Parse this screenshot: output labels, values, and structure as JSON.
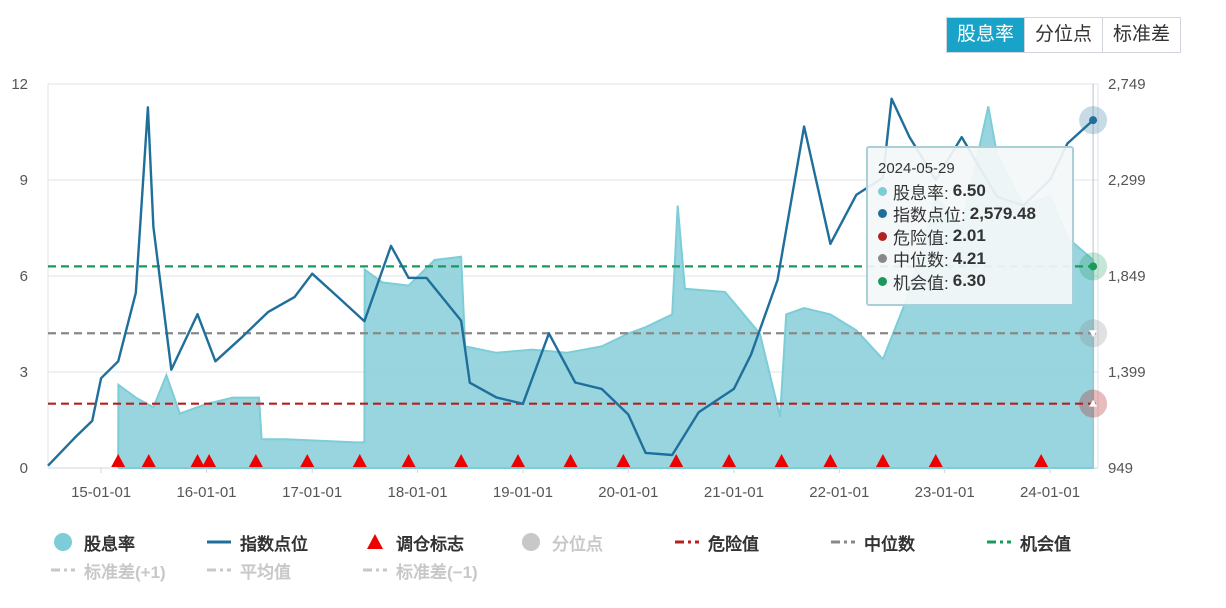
{
  "tabs": [
    {
      "label": "股息率",
      "active": true
    },
    {
      "label": "分位点",
      "active": false
    },
    {
      "label": "标准差",
      "active": false
    }
  ],
  "tooltip": {
    "date": "2024-05-29",
    "rows": [
      {
        "label": "股息率",
        "value": "6.50",
        "color": "#7ccdd8"
      },
      {
        "label": "指数点位",
        "value": "2,579.48",
        "color": "#1f6f9b"
      },
      {
        "label": "危险值",
        "value": "2.01",
        "color": "#b22222"
      },
      {
        "label": "中位数",
        "value": "4.21",
        "color": "#888888"
      },
      {
        "label": "机会值",
        "value": "6.30",
        "color": "#1a9a5a"
      }
    ]
  },
  "legend": [
    [
      {
        "label": "股息率",
        "type": "dot",
        "color": "#7ccdd8",
        "on": true
      },
      {
        "label": "指数点位",
        "type": "line",
        "color": "#1f6f9b",
        "on": true
      },
      {
        "label": "调仓标志",
        "type": "triangle",
        "color": "#ee0000",
        "on": true
      },
      {
        "label": "分位点",
        "type": "dot",
        "color": "#c8c8c8",
        "on": false
      },
      {
        "label": "危险值",
        "type": "dash",
        "color": "#b22222",
        "on": true
      },
      {
        "label": "中位数",
        "type": "dash",
        "color": "#888888",
        "on": true
      },
      {
        "label": "机会值",
        "type": "dash",
        "color": "#1a9a5a",
        "on": true
      }
    ],
    [
      {
        "label": "标准差(+1)",
        "type": "dash",
        "color": "#c8c8c8",
        "on": false
      },
      {
        "label": "平均值",
        "type": "dash",
        "color": "#c8c8c8",
        "on": false
      },
      {
        "label": "标准差(−1)",
        "type": "dash",
        "color": "#c8c8c8",
        "on": false
      }
    ]
  ],
  "chart_data": {
    "type": "line",
    "x_ticks": [
      "15-01-01",
      "16-01-01",
      "17-01-01",
      "18-01-01",
      "19-01-01",
      "20-01-01",
      "21-01-01",
      "22-01-01",
      "23-01-01",
      "24-01-01"
    ],
    "x_range": [
      "2014-07-01",
      "2024-06-15"
    ],
    "y_left": {
      "ticks": [
        "0",
        "3",
        "6",
        "9",
        "12"
      ],
      "range": [
        0,
        12
      ]
    },
    "y_right": {
      "ticks": [
        "949",
        "1,399",
        "1,849",
        "2,299",
        "2,749"
      ],
      "range": [
        949,
        2749
      ]
    },
    "thresholds": {
      "danger": 2.01,
      "median": 4.21,
      "opportunity": 6.3
    },
    "dividend_yield": [
      [
        "2015-03-01",
        0
      ],
      [
        "2015-03-02",
        2.6
      ],
      [
        "2015-05-01",
        2.2
      ],
      [
        "2015-07-01",
        1.9
      ],
      [
        "2015-08-15",
        2.9
      ],
      [
        "2015-10-01",
        1.7
      ],
      [
        "2016-01-01",
        2.0
      ],
      [
        "2016-04-01",
        2.2
      ],
      [
        "2016-07-01",
        2.2
      ],
      [
        "2016-07-10",
        0.9
      ],
      [
        "2016-10-01",
        0.9
      ],
      [
        "2017-06-01",
        0.8
      ],
      [
        "2017-07-01",
        0.8
      ],
      [
        "2017-07-02",
        6.2
      ],
      [
        "2017-09-01",
        5.8
      ],
      [
        "2017-12-01",
        5.7
      ],
      [
        "2018-03-01",
        6.5
      ],
      [
        "2018-06-01",
        6.6
      ],
      [
        "2018-06-15",
        3.8
      ],
      [
        "2018-10-01",
        3.6
      ],
      [
        "2019-02-01",
        3.7
      ],
      [
        "2019-06-01",
        3.6
      ],
      [
        "2019-10-01",
        3.8
      ],
      [
        "2020-01-01",
        4.2
      ],
      [
        "2020-03-01",
        4.4
      ],
      [
        "2020-06-01",
        4.8
      ],
      [
        "2020-06-20",
        8.2
      ],
      [
        "2020-07-15",
        5.6
      ],
      [
        "2020-12-01",
        5.5
      ],
      [
        "2021-04-01",
        4.2
      ],
      [
        "2021-06-10",
        1.6
      ],
      [
        "2021-07-01",
        4.8
      ],
      [
        "2021-09-01",
        5.0
      ],
      [
        "2021-12-01",
        4.8
      ],
      [
        "2022-03-01",
        4.3
      ],
      [
        "2022-06-01",
        3.4
      ],
      [
        "2022-09-01",
        5.5
      ],
      [
        "2022-12-01",
        8.5
      ],
      [
        "2023-03-01",
        7.5
      ],
      [
        "2023-06-01",
        11.3
      ],
      [
        "2023-07-01",
        9.8
      ],
      [
        "2023-10-01",
        8.2
      ],
      [
        "2024-01-01",
        8.5
      ],
      [
        "2024-03-01",
        7.2
      ],
      [
        "2024-05-29",
        6.5
      ]
    ],
    "index_level": [
      [
        "2014-07-01",
        960
      ],
      [
        "2014-10-01",
        1090
      ],
      [
        "2014-12-01",
        1170
      ],
      [
        "2015-01-01",
        1370
      ],
      [
        "2015-03-01",
        1449
      ],
      [
        "2015-05-01",
        1770
      ],
      [
        "2015-06-12",
        2640
      ],
      [
        "2015-07-01",
        2079
      ],
      [
        "2015-09-01",
        1410
      ],
      [
        "2015-12-01",
        1670
      ],
      [
        "2016-02-01",
        1449
      ],
      [
        "2016-05-01",
        1560
      ],
      [
        "2016-08-01",
        1680
      ],
      [
        "2016-11-01",
        1750
      ],
      [
        "2017-01-01",
        1860
      ],
      [
        "2017-04-01",
        1750
      ],
      [
        "2017-07-01",
        1637
      ],
      [
        "2017-10-01",
        1990
      ],
      [
        "2017-12-01",
        1840
      ],
      [
        "2018-02-01",
        1840
      ],
      [
        "2018-06-01",
        1640
      ],
      [
        "2018-07-01",
        1349
      ],
      [
        "2018-10-01",
        1280
      ],
      [
        "2019-01-01",
        1250
      ],
      [
        "2019-04-01",
        1580
      ],
      [
        "2019-07-01",
        1350
      ],
      [
        "2019-10-01",
        1320
      ],
      [
        "2020-01-01",
        1200
      ],
      [
        "2020-03-01",
        1020
      ],
      [
        "2020-06-01",
        1010
      ],
      [
        "2020-09-01",
        1210
      ],
      [
        "2021-01-01",
        1320
      ],
      [
        "2021-03-01",
        1480
      ],
      [
        "2021-06-01",
        1830
      ],
      [
        "2021-09-01",
        2550
      ],
      [
        "2021-12-01",
        2000
      ],
      [
        "2022-03-01",
        2230
      ],
      [
        "2022-06-01",
        2310
      ],
      [
        "2022-07-01",
        2680
      ],
      [
        "2022-09-01",
        2500
      ],
      [
        "2022-12-01",
        2300
      ],
      [
        "2023-03-01",
        2500
      ],
      [
        "2023-07-01",
        2220
      ],
      [
        "2023-10-01",
        2180
      ],
      [
        "2024-01-01",
        2300
      ],
      [
        "2024-03-01",
        2470
      ],
      [
        "2024-05-29",
        2579.48
      ]
    ],
    "rebalance_markers": [
      "2015-03-01",
      "2015-06-15",
      "2015-12-01",
      "2016-01-10",
      "2016-06-20",
      "2016-12-15",
      "2017-06-15",
      "2017-12-01",
      "2018-06-01",
      "2018-12-15",
      "2019-06-15",
      "2019-12-15",
      "2020-06-15",
      "2020-12-15",
      "2021-06-15",
      "2021-12-01",
      "2022-06-01",
      "2022-12-01",
      "2023-12-01"
    ]
  }
}
